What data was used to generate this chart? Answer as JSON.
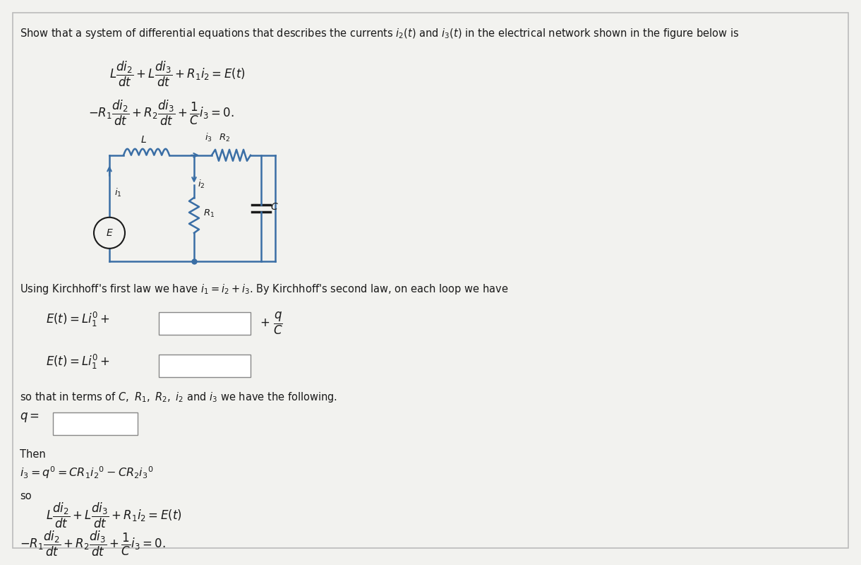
{
  "background_color": "#f2f2ef",
  "border_color": "#bbbbbb",
  "text_color": "#1a1a1a",
  "box_color": "#ffffff",
  "circuit_color": "#3a6ea5",
  "title": "Show that a system of differential equations that describes the currents $i_2(t)$ and $i_3(t)$ in the electrical network shown in the figure below is",
  "eq1": "$L\\dfrac{di_2}{dt} + L\\dfrac{di_3}{dt} + R_1i_2 = E(t)$",
  "eq2": "$-R_1\\dfrac{di_2}{dt} + R_2\\dfrac{di_3}{dt} + \\dfrac{1}{C}i_3 = 0.$",
  "kirchhoff": "Using Kirchhoff's first law we have $i_1 = i_2 + i_3$. By Kirchhoff's second law, on each loop we have",
  "eq3": "$E(t) = Li_1' +$",
  "eq3_rhs": "$+\\ \\dfrac{q}{C}$",
  "eq4": "$E(t) = Li_1' +$",
  "soterms": "so that in terms of $C,\\ R_1,\\ R_2,\\ i_2$ and $i_3$ we have the following.",
  "then": "Then",
  "i3eq": "$i_3 = q' = CR_1i_2{}' - CR_2i_3{}'$",
  "so": "so",
  "eq5": "$L\\dfrac{di_2}{dt} + L\\dfrac{di_3}{dt} + R_1i_2 = E(t)$",
  "eq6": "$-R_1\\dfrac{di_2}{dt} + R_2\\dfrac{di_3}{dt} + \\dfrac{1}{C}i_3 = 0.$"
}
